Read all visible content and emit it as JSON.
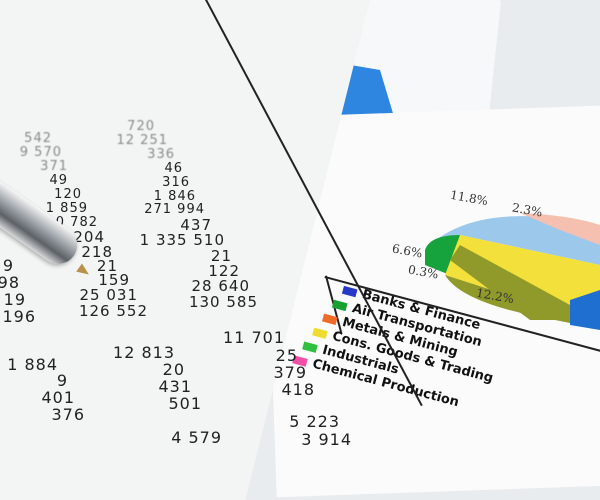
{
  "table": {
    "col_a": [
      "542",
      "9 570",
      "371",
      "49",
      "120",
      "1 859",
      "0 782",
      "204",
      "218",
      "21",
      "159",
      "25 031",
      "126 552"
    ],
    "col_b": [
      "720",
      "12 251",
      "336",
      "46",
      "316",
      "1 846",
      "271 994",
      "437",
      "1 335 510",
      "21",
      "122",
      "28 640",
      "130 585"
    ],
    "col_edge": [
      "9",
      "98",
      "19",
      "196"
    ],
    "lower_a": [
      "1 884",
      "9",
      "401",
      "376"
    ],
    "lower_b": [
      "12 813",
      "20",
      "431",
      "501",
      "4 579"
    ],
    "lower_c": [
      "11 701",
      "25",
      "379",
      "418",
      "5 223",
      "3 914"
    ]
  },
  "pie_chart": {
    "labels": [
      "11.8%",
      "2.3%",
      "6.6%",
      "0.3%",
      "12.2%"
    ],
    "colors": [
      "#9cc8ec",
      "#f5c0b0",
      "#16a23c",
      "#8f9a2a",
      "#f4e03a",
      "#1f6fd0",
      "#e8398f"
    ]
  },
  "legend": [
    {
      "label": "Banks & Finance",
      "color": "#2638c8"
    },
    {
      "label": "Air Transportation",
      "color": "#18a030"
    },
    {
      "label": "Metals & Mining",
      "color": "#f06a28"
    },
    {
      "label": "Cons. Goods & Trading",
      "color": "#f0dc30"
    },
    {
      "label": "Industrials",
      "color": "#30c040"
    },
    {
      "label": "Chemical Production",
      "color": "#f050a8"
    }
  ]
}
